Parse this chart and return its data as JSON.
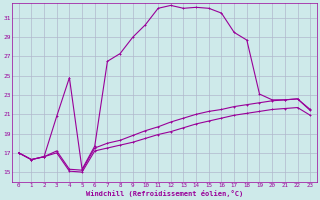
{
  "background_color": "#ceeaea",
  "grid_color": "#b0b8cc",
  "line_color": "#990099",
  "xlabel": "Windchill (Refroidissement éolien,°C)",
  "xlim": [
    -0.5,
    23.5
  ],
  "ylim": [
    14.0,
    32.5
  ],
  "yticks": [
    15,
    17,
    19,
    21,
    23,
    25,
    27,
    29,
    31
  ],
  "xticks": [
    0,
    1,
    2,
    3,
    4,
    5,
    6,
    7,
    8,
    9,
    10,
    11,
    12,
    13,
    14,
    15,
    16,
    17,
    18,
    19,
    20,
    21,
    22,
    23
  ],
  "line1_x": [
    0,
    1,
    2,
    3,
    4,
    5,
    6,
    7,
    8,
    9,
    10,
    11,
    12,
    13,
    14,
    15,
    16,
    17,
    18,
    19,
    20,
    21,
    22,
    23
  ],
  "line1_y": [
    17.0,
    16.3,
    16.6,
    20.8,
    24.8,
    15.3,
    17.7,
    26.5,
    27.3,
    29.0,
    30.3,
    32.0,
    32.3,
    32.0,
    32.1,
    32.0,
    31.5,
    29.5,
    28.7,
    23.1,
    22.5,
    22.5,
    22.6,
    21.5
  ],
  "line2_x": [
    0,
    1,
    2,
    3,
    4,
    5,
    6,
    7,
    8,
    9,
    10,
    11,
    12,
    13,
    14,
    15,
    16,
    17,
    18,
    19,
    20,
    21,
    22,
    23
  ],
  "line2_y": [
    17.0,
    16.3,
    16.6,
    17.2,
    15.3,
    15.2,
    17.5,
    18.0,
    18.3,
    18.8,
    19.3,
    19.7,
    20.2,
    20.6,
    21.0,
    21.3,
    21.5,
    21.8,
    22.0,
    22.2,
    22.4,
    22.5,
    22.6,
    21.4
  ],
  "line3_x": [
    0,
    1,
    2,
    3,
    4,
    5,
    6,
    7,
    8,
    9,
    10,
    11,
    12,
    13,
    14,
    15,
    16,
    17,
    18,
    19,
    20,
    21,
    22,
    23
  ],
  "line3_y": [
    17.0,
    16.3,
    16.6,
    17.0,
    15.1,
    15.0,
    17.2,
    17.5,
    17.8,
    18.1,
    18.5,
    18.9,
    19.2,
    19.6,
    20.0,
    20.3,
    20.6,
    20.9,
    21.1,
    21.3,
    21.5,
    21.6,
    21.7,
    20.9
  ]
}
